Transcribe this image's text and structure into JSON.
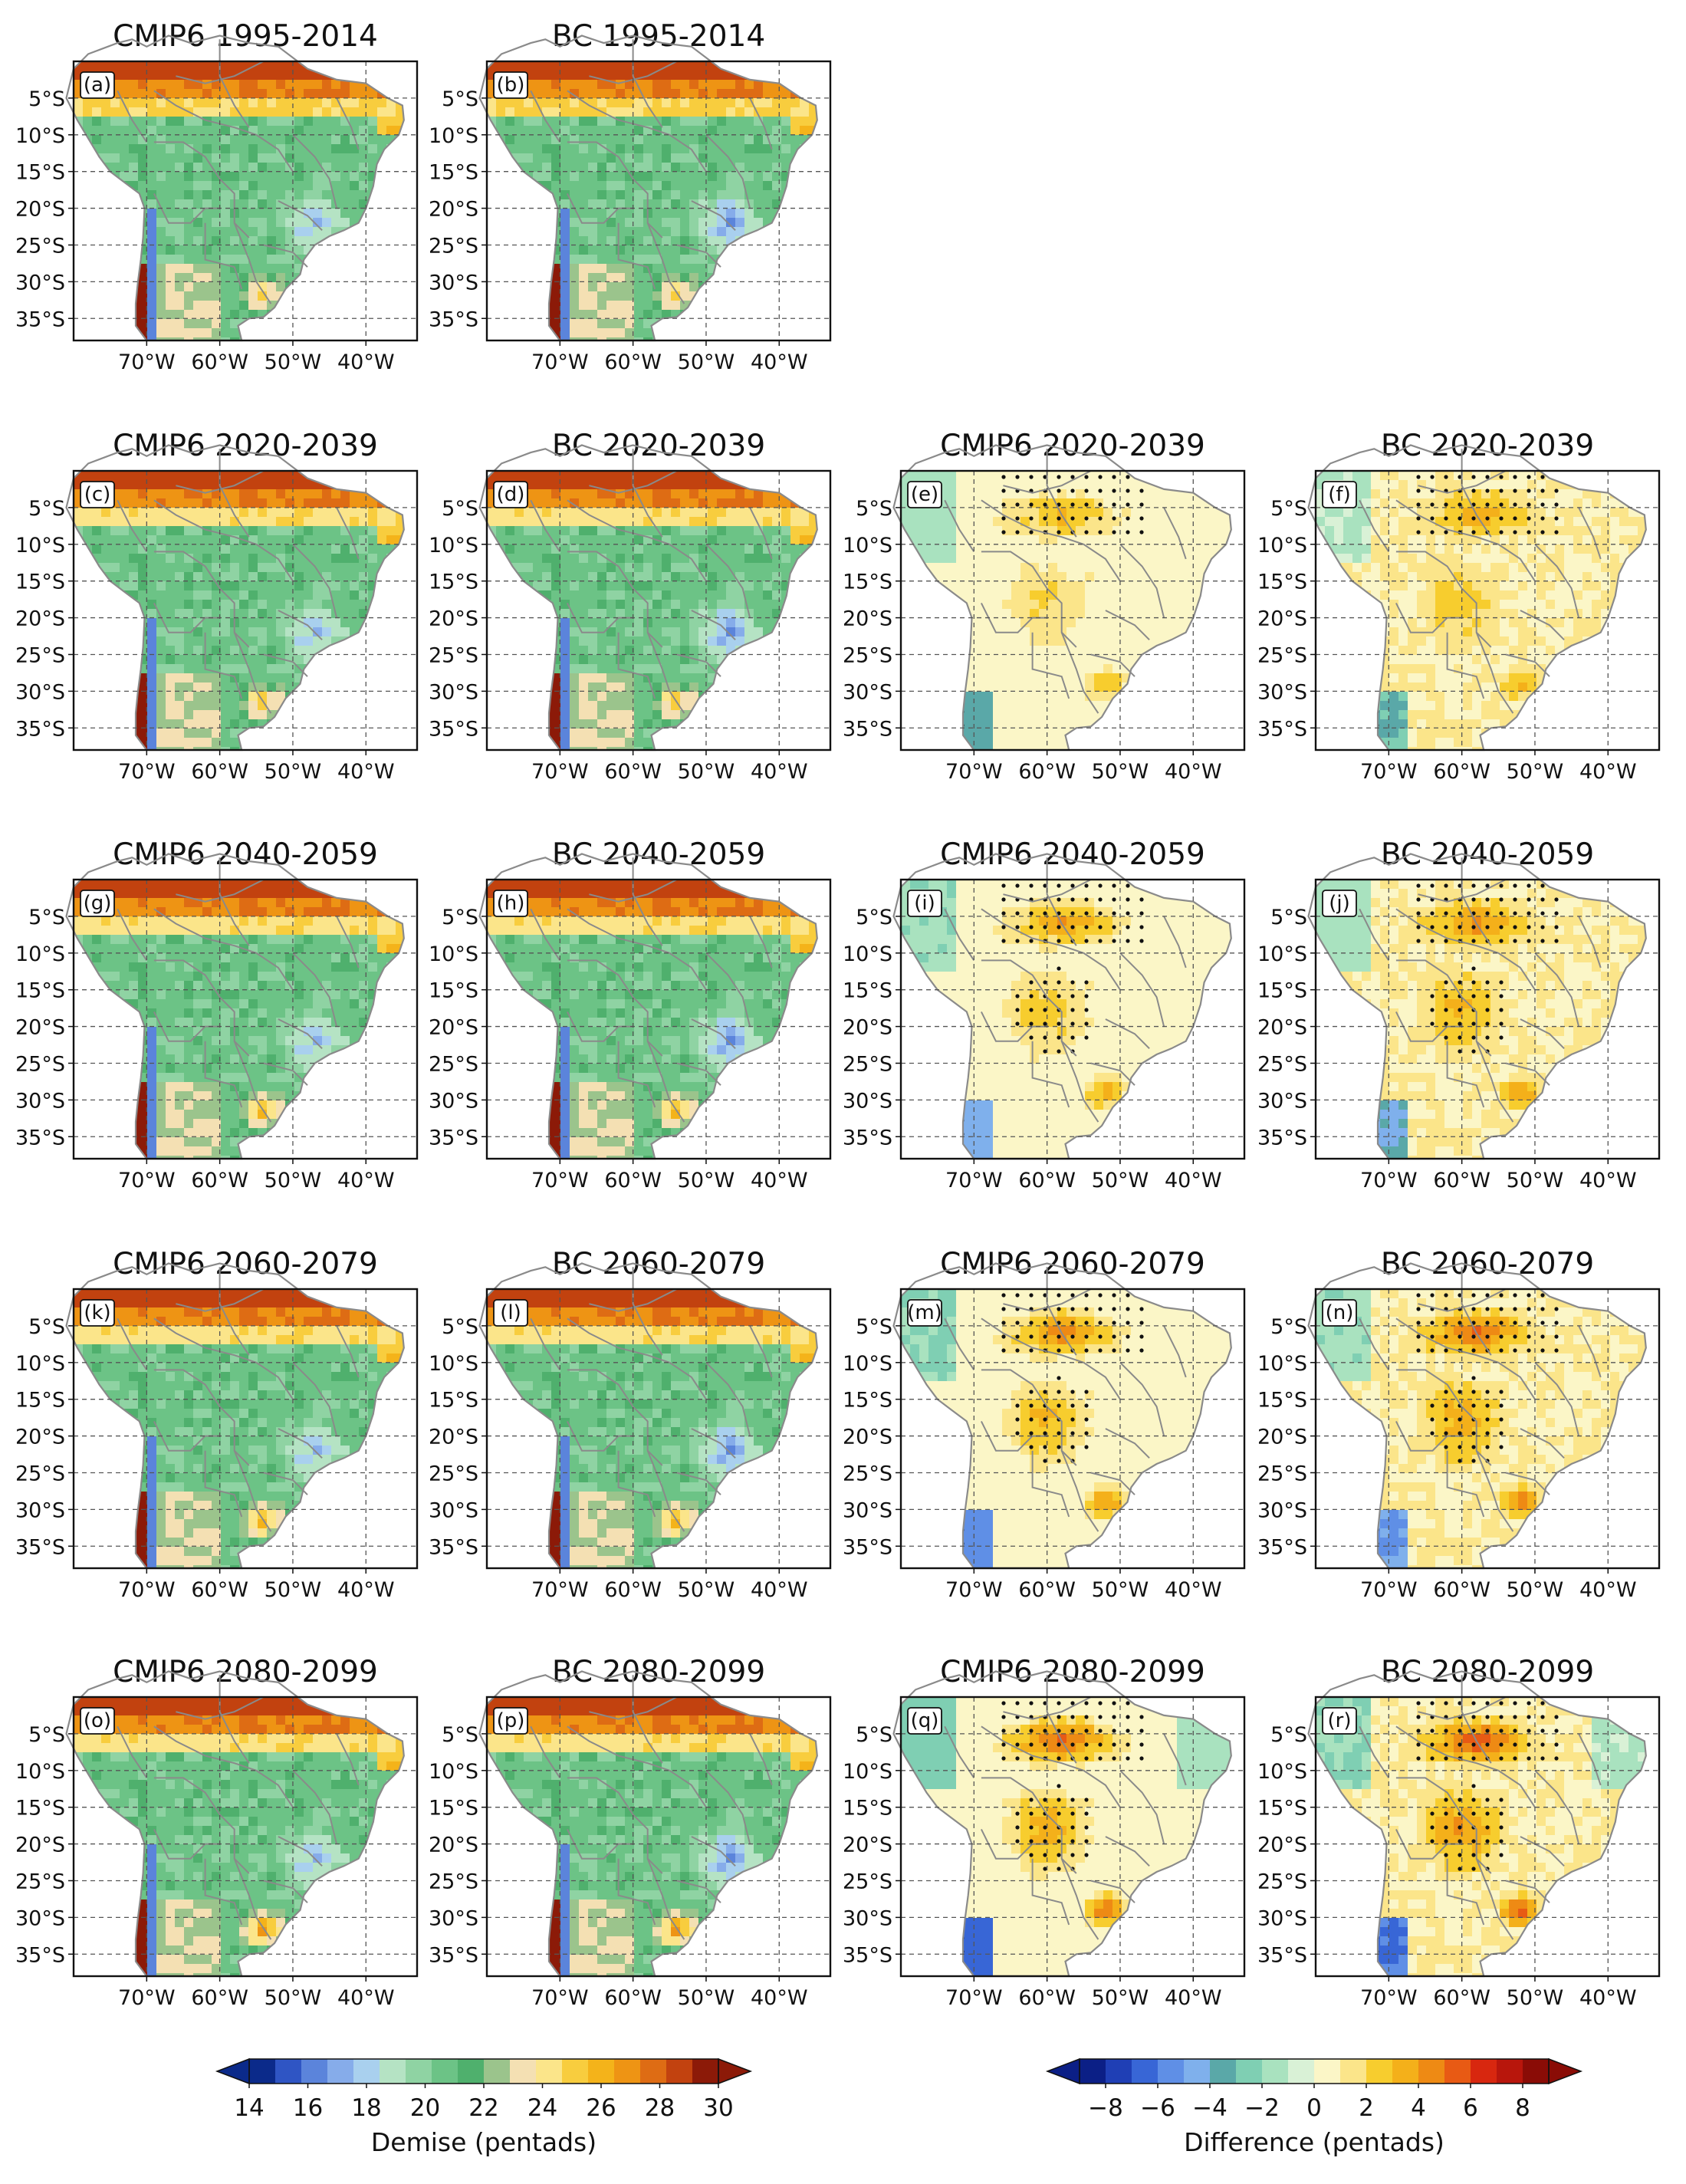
{
  "chart_data": {
    "type": "heatmap",
    "description_units": "pentads",
    "lon_ticks": [
      "70°W",
      "60°W",
      "50°W",
      "40°W"
    ],
    "lat_ticks": [
      "5°S",
      "10°S",
      "15°S",
      "20°S",
      "25°S",
      "30°S",
      "35°S"
    ],
    "lon_range": [
      -80,
      -33
    ],
    "lat_range": [
      0,
      -38
    ],
    "panels": [
      {
        "label": "(a)",
        "title": "CMIP6 1995-2014",
        "kind": "demise",
        "period": 0
      },
      {
        "label": "(b)",
        "title": "BC 1995-2014",
        "kind": "demise",
        "period": 0
      },
      {
        "label": "(c)",
        "title": "CMIP6 2020-2039",
        "kind": "demise",
        "period": 1
      },
      {
        "label": "(d)",
        "title": "BC 2020-2039",
        "kind": "demise",
        "period": 1
      },
      {
        "label": "(e)",
        "title": "CMIP6 2020-2039",
        "kind": "difference",
        "period": 1
      },
      {
        "label": "(f)",
        "title": "BC 2020-2039",
        "kind": "difference",
        "period": 1
      },
      {
        "label": "(g)",
        "title": "CMIP6 2040-2059",
        "kind": "demise",
        "period": 2
      },
      {
        "label": "(h)",
        "title": "BC 2040-2059",
        "kind": "demise",
        "period": 2
      },
      {
        "label": "(i)",
        "title": "CMIP6 2040-2059",
        "kind": "difference",
        "period": 2
      },
      {
        "label": "(j)",
        "title": "BC 2040-2059",
        "kind": "difference",
        "period": 2
      },
      {
        "label": "(k)",
        "title": "CMIP6 2060-2079",
        "kind": "demise",
        "period": 3
      },
      {
        "label": "(l)",
        "title": "BC 2060-2079",
        "kind": "demise",
        "period": 3
      },
      {
        "label": "(m)",
        "title": "CMIP6 2060-2079",
        "kind": "difference",
        "period": 3
      },
      {
        "label": "(n)",
        "title": "BC 2060-2079",
        "kind": "difference",
        "period": 3
      },
      {
        "label": "(o)",
        "title": "CMIP6 2080-2099",
        "kind": "demise",
        "period": 4
      },
      {
        "label": "(p)",
        "title": "BC 2080-2099",
        "kind": "demise",
        "period": 4
      },
      {
        "label": "(q)",
        "title": "CMIP6 2080-2099",
        "kind": "difference",
        "period": 4
      },
      {
        "label": "(r)",
        "title": "BC 2080-2099",
        "kind": "difference",
        "period": 4
      }
    ],
    "colorbars": [
      {
        "title": "Demise (pentads)",
        "range": [
          14,
          30
        ],
        "tick_values": [
          14,
          16,
          18,
          20,
          22,
          24,
          26,
          28,
          30
        ],
        "tick_labels": [
          "14",
          "16",
          "18",
          "20",
          "22",
          "24",
          "26",
          "28",
          "30"
        ],
        "colors": [
          "#0b2a8a",
          "#2f55c4",
          "#5b84db",
          "#86acea",
          "#a9d0ee",
          "#b5e3c4",
          "#8fd3a3",
          "#6cc386",
          "#4fb06d",
          "#9bc48c",
          "#f4e0b3",
          "#fbe58a",
          "#f8cd3e",
          "#f4b31a",
          "#ee9414",
          "#de6c14",
          "#c2420f",
          "#8c1a08"
        ]
      },
      {
        "title": "Difference (pentads)",
        "range": [
          -9,
          9
        ],
        "tick_values": [
          -8,
          -6,
          -4,
          -2,
          0,
          2,
          4,
          6,
          8
        ],
        "tick_labels": [
          "−8",
          "−6",
          "−4",
          "−2",
          "0",
          "2",
          "4",
          "6",
          "8"
        ],
        "colors": [
          "#0b1f86",
          "#1f3fb5",
          "#3866d6",
          "#5f8fe6",
          "#7fb0ec",
          "#5aa8a8",
          "#7fcfb3",
          "#a9e2bf",
          "#d9f1d6",
          "#fbf6c7",
          "#fbe58a",
          "#f7cd2e",
          "#f4b01a",
          "#ee8a14",
          "#e85a14",
          "#d8270f",
          "#b8160c",
          "#8a0c06"
        ]
      }
    ]
  }
}
